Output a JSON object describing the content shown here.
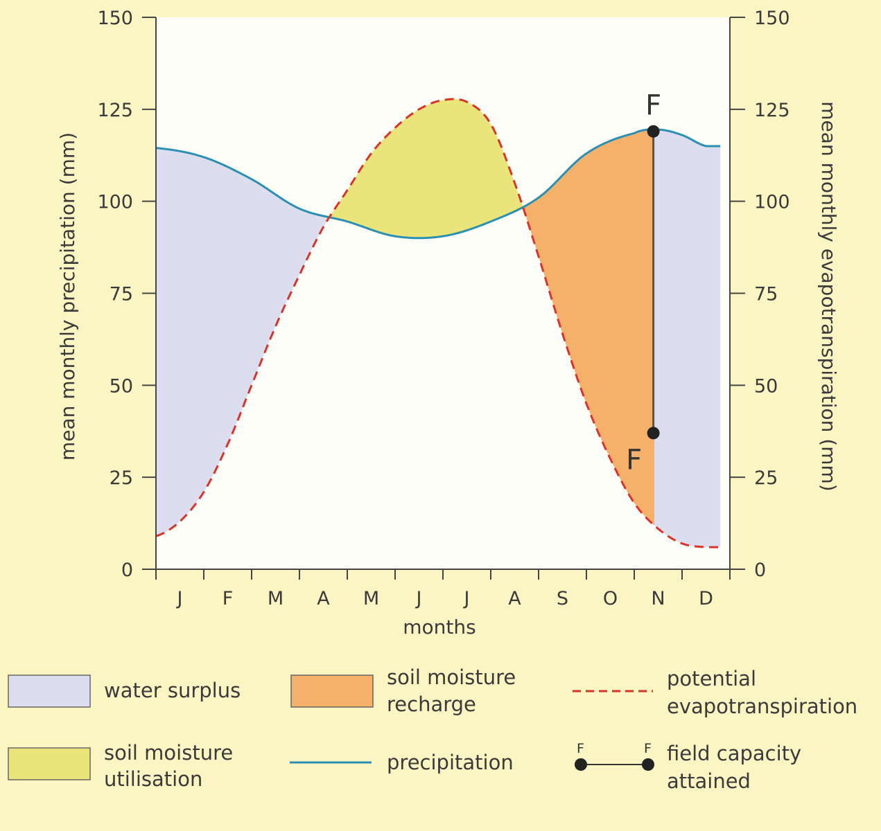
{
  "chart_data": {
    "type": "area",
    "title": "",
    "xlabel": "months",
    "ylabel_left": "mean monthly precipitation (mm)",
    "ylabel_right": "mean monthly evapotranspiration (mm)",
    "ylim": [
      0,
      150
    ],
    "yticks": [
      0,
      25,
      50,
      75,
      100,
      125,
      150
    ],
    "yticks_right": [
      0,
      25,
      50,
      75,
      100,
      125,
      150
    ],
    "categories": [
      "J",
      "F",
      "M",
      "A",
      "M",
      "J",
      "J",
      "A",
      "S",
      "O",
      "N",
      "D"
    ],
    "series": [
      {
        "name": "precipitation",
        "style": "solid",
        "color": "#2a8fb2",
        "points": [
          [
            0.0,
            114.5
          ],
          [
            1.0,
            112
          ],
          [
            2.0,
            106
          ],
          [
            3.0,
            98
          ],
          [
            4.0,
            94.5
          ],
          [
            5.0,
            90.5
          ],
          [
            6.0,
            90.5
          ],
          [
            7.0,
            94.5
          ],
          [
            8.0,
            101
          ],
          [
            9.0,
            113
          ],
          [
            10.0,
            118.5
          ],
          [
            10.5,
            119.5
          ],
          [
            11.0,
            118
          ],
          [
            11.5,
            115
          ]
        ]
      },
      {
        "name": "potential evapotranspiration",
        "style": "dashed",
        "color": "#d9342a",
        "points": [
          [
            0.0,
            9
          ],
          [
            0.5,
            13
          ],
          [
            1.0,
            21
          ],
          [
            1.5,
            34
          ],
          [
            2.0,
            50
          ],
          [
            2.5,
            66
          ],
          [
            3.0,
            80
          ],
          [
            3.5,
            93
          ],
          [
            4.0,
            103
          ],
          [
            4.5,
            113
          ],
          [
            5.0,
            120
          ],
          [
            5.5,
            125
          ],
          [
            6.0,
            127.5
          ],
          [
            6.5,
            127
          ],
          [
            7.0,
            121
          ],
          [
            7.5,
            105
          ],
          [
            8.0,
            85
          ],
          [
            8.5,
            64
          ],
          [
            9.0,
            45
          ],
          [
            9.5,
            30
          ],
          [
            10.0,
            18
          ],
          [
            10.5,
            11
          ],
          [
            11.0,
            7
          ],
          [
            11.5,
            6
          ]
        ]
      }
    ],
    "regions": [
      {
        "name": "water surplus",
        "color": "#dcddee"
      },
      {
        "name": "soil moisture utilisation",
        "color": "#e9e57a"
      },
      {
        "name": "soil moisture recharge",
        "color": "#f5b06a"
      }
    ],
    "field_capacity": {
      "label": "F",
      "month": "N",
      "x": 10.4,
      "y_top": 119,
      "y_bottom": 37,
      "color": "#222222"
    }
  },
  "legend": {
    "items": [
      {
        "key": "water_surplus",
        "label_lines": [
          "water surplus"
        ]
      },
      {
        "key": "soil_moisture_recharge",
        "label_lines": [
          "soil moisture",
          "recharge"
        ]
      },
      {
        "key": "potential_evapotranspiration",
        "label_lines": [
          "potential",
          "evapotranspiration"
        ]
      },
      {
        "key": "soil_moisture_utilisation",
        "label_lines": [
          "soil moisture",
          "utilisation"
        ]
      },
      {
        "key": "precipitation",
        "label_lines": [
          "precipitation"
        ]
      },
      {
        "key": "field_capacity",
        "label_lines": [
          "field capacity",
          "attained"
        ],
        "marker_labels": [
          "F",
          "F"
        ]
      }
    ]
  }
}
